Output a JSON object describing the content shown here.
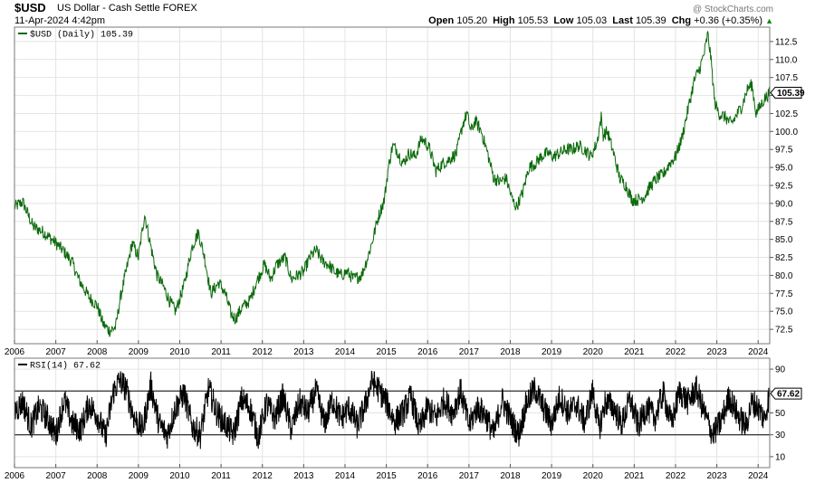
{
  "header": {
    "ticker": "$USD",
    "description": "US Dollar - Cash Settle",
    "exchange": "FOREX",
    "watermark": "@ StockCharts.com",
    "datetime": "11-Apr-2024 4:42pm",
    "open_label": "Open",
    "open": "105.20",
    "high_label": "High",
    "high": "105.53",
    "low_label": "Low",
    "low": "105.03",
    "last_label": "Last",
    "last": "105.39",
    "chg_label": "Chg",
    "chg": "+0.36 (+0.35%)",
    "chg_arrow": "▲"
  },
  "colors": {
    "price_line": "#0b6a0b",
    "rsi_line": "#000000",
    "up": "#0a8a0a"
  },
  "chart_data": [
    {
      "type": "line",
      "legend": "$USD (Daily) 105.39",
      "last_value_label": "105.39",
      "x_tick_labels": [
        "2006",
        "2007",
        "2008",
        "2009",
        "2010",
        "2011",
        "2012",
        "2013",
        "2014",
        "2015",
        "2016",
        "2017",
        "2018",
        "2019",
        "2020",
        "2021",
        "2022",
        "2023",
        "2024"
      ],
      "y_tick_labels": [
        "72.5",
        "75.0",
        "77.5",
        "80.0",
        "82.5",
        "85.0",
        "87.5",
        "90.0",
        "92.5",
        "95.0",
        "97.5",
        "100.0",
        "102.5",
        "105.0",
        "107.5",
        "110.0",
        "112.5"
      ],
      "ylim": [
        70.5,
        114.5
      ],
      "series": [
        {
          "name": "$USD",
          "x": [
            2006.0,
            2006.2,
            2006.45,
            2006.7,
            2007.0,
            2007.2,
            2007.4,
            2007.55,
            2007.8,
            2008.0,
            2008.15,
            2008.3,
            2008.45,
            2008.55,
            2008.7,
            2008.85,
            2009.0,
            2009.15,
            2009.3,
            2009.45,
            2009.6,
            2009.75,
            2009.9,
            2010.1,
            2010.3,
            2010.45,
            2010.6,
            2010.75,
            2010.95,
            2011.1,
            2011.25,
            2011.35,
            2011.5,
            2011.7,
            2011.85,
            2012.05,
            2012.2,
            2012.35,
            2012.55,
            2012.7,
            2012.85,
            2013.0,
            2013.15,
            2013.3,
            2013.45,
            2013.6,
            2013.75,
            2013.9,
            2014.05,
            2014.2,
            2014.4,
            2014.55,
            2014.65,
            2014.8,
            2014.95,
            2015.05,
            2015.15,
            2015.25,
            2015.4,
            2015.55,
            2015.7,
            2015.85,
            2015.95,
            2016.05,
            2016.2,
            2016.35,
            2016.5,
            2016.7,
            2016.85,
            2016.95,
            2017.05,
            2017.15,
            2017.3,
            2017.45,
            2017.6,
            2017.75,
            2017.9,
            2018.05,
            2018.15,
            2018.3,
            2018.45,
            2018.6,
            2018.75,
            2018.9,
            2019.05,
            2019.2,
            2019.35,
            2019.5,
            2019.65,
            2019.8,
            2019.95,
            2020.1,
            2020.2,
            2020.25,
            2020.35,
            2020.5,
            2020.65,
            2020.8,
            2020.95,
            2021.1,
            2021.25,
            2021.4,
            2021.55,
            2021.7,
            2021.85,
            2022.0,
            2022.15,
            2022.3,
            2022.45,
            2022.6,
            2022.7,
            2022.78,
            2022.85,
            2022.95,
            2023.05,
            2023.2,
            2023.35,
            2023.5,
            2023.6,
            2023.75,
            2023.85,
            2023.95,
            2024.05,
            2024.15,
            2024.28
          ],
          "y": [
            89.5,
            90.2,
            86.8,
            86.0,
            84.5,
            83.3,
            81.8,
            79.5,
            77.0,
            75.8,
            73.2,
            72.3,
            72.8,
            76.5,
            80.5,
            84.5,
            82.5,
            88.5,
            84.0,
            80.0,
            78.5,
            76.5,
            75.0,
            78.5,
            84.0,
            86.0,
            82.5,
            77.5,
            79.0,
            77.5,
            74.5,
            74.0,
            75.5,
            76.5,
            79.0,
            81.5,
            79.5,
            81.5,
            82.5,
            79.5,
            80.0,
            80.5,
            82.5,
            83.5,
            82.0,
            81.5,
            80.5,
            80.0,
            80.5,
            79.5,
            80.0,
            82.5,
            84.5,
            88.0,
            90.5,
            95.0,
            98.0,
            97.5,
            95.5,
            97.0,
            96.5,
            99.0,
            98.5,
            97.5,
            94.5,
            95.5,
            96.0,
            97.0,
            101.0,
            102.5,
            100.0,
            101.5,
            100.0,
            97.0,
            93.5,
            93.0,
            93.5,
            90.5,
            89.5,
            91.5,
            95.0,
            95.5,
            96.5,
            97.0,
            96.5,
            97.0,
            97.5,
            97.5,
            98.0,
            97.5,
            96.5,
            98.5,
            102.0,
            99.5,
            100.0,
            97.0,
            93.5,
            92.5,
            90.5,
            90.5,
            91.0,
            92.5,
            93.5,
            94.0,
            95.5,
            96.5,
            99.0,
            103.0,
            107.0,
            109.0,
            111.0,
            113.5,
            110.5,
            104.0,
            102.5,
            102.0,
            101.0,
            102.5,
            103.5,
            106.0,
            106.5,
            102.5,
            103.5,
            104.5,
            105.39
          ]
        }
      ]
    },
    {
      "type": "line",
      "legend": "RSI(14) 67.62",
      "last_value_label": "67.62",
      "x_tick_labels": [
        "2006",
        "2007",
        "2008",
        "2009",
        "2010",
        "2011",
        "2012",
        "2013",
        "2014",
        "2015",
        "2016",
        "2017",
        "2018",
        "2019",
        "2020",
        "2021",
        "2022",
        "2023",
        "2024"
      ],
      "y_tick_labels": [
        "10",
        "30",
        "50",
        "70",
        "90"
      ],
      "ylim": [
        0,
        100
      ],
      "reference_lines": [
        30,
        70
      ],
      "series": [
        {
          "name": "RSI(14)",
          "x": [
            2006.0,
            2006.2,
            2006.4,
            2006.6,
            2006.8,
            2007.0,
            2007.2,
            2007.4,
            2007.6,
            2007.8,
            2008.0,
            2008.2,
            2008.4,
            2008.55,
            2008.7,
            2008.9,
            2009.1,
            2009.3,
            2009.5,
            2009.7,
            2009.9,
            2010.1,
            2010.3,
            2010.5,
            2010.7,
            2010.9,
            2011.1,
            2011.3,
            2011.5,
            2011.7,
            2011.9,
            2012.1,
            2012.3,
            2012.5,
            2012.7,
            2012.9,
            2013.1,
            2013.3,
            2013.5,
            2013.7,
            2013.9,
            2014.1,
            2014.3,
            2014.5,
            2014.65,
            2014.8,
            2015.0,
            2015.2,
            2015.4,
            2015.6,
            2015.8,
            2016.0,
            2016.2,
            2016.4,
            2016.6,
            2016.8,
            2017.0,
            2017.2,
            2017.4,
            2017.6,
            2017.8,
            2018.0,
            2018.2,
            2018.4,
            2018.6,
            2018.8,
            2019.0,
            2019.2,
            2019.4,
            2019.6,
            2019.8,
            2020.0,
            2020.15,
            2020.3,
            2020.5,
            2020.7,
            2020.9,
            2021.1,
            2021.3,
            2021.5,
            2021.7,
            2021.9,
            2022.1,
            2022.3,
            2022.5,
            2022.7,
            2022.9,
            2023.1,
            2023.3,
            2023.5,
            2023.7,
            2023.85,
            2024.0,
            2024.15,
            2024.28
          ],
          "y": [
            52,
            60,
            38,
            55,
            45,
            30,
            62,
            40,
            35,
            58,
            48,
            28,
            70,
            80,
            72,
            45,
            35,
            75,
            40,
            30,
            55,
            68,
            38,
            30,
            72,
            50,
            40,
            30,
            62,
            55,
            28,
            58,
            45,
            65,
            35,
            60,
            50,
            70,
            40,
            62,
            45,
            55,
            38,
            58,
            80,
            72,
            60,
            42,
            50,
            65,
            35,
            55,
            45,
            62,
            50,
            70,
            38,
            55,
            48,
            30,
            62,
            45,
            30,
            60,
            72,
            55,
            40,
            65,
            50,
            58,
            42,
            70,
            35,
            60,
            55,
            40,
            62,
            38,
            55,
            45,
            68,
            40,
            70,
            60,
            72,
            50,
            30,
            42,
            65,
            48,
            38,
            60,
            55,
            44,
            67.62
          ]
        }
      ]
    }
  ]
}
